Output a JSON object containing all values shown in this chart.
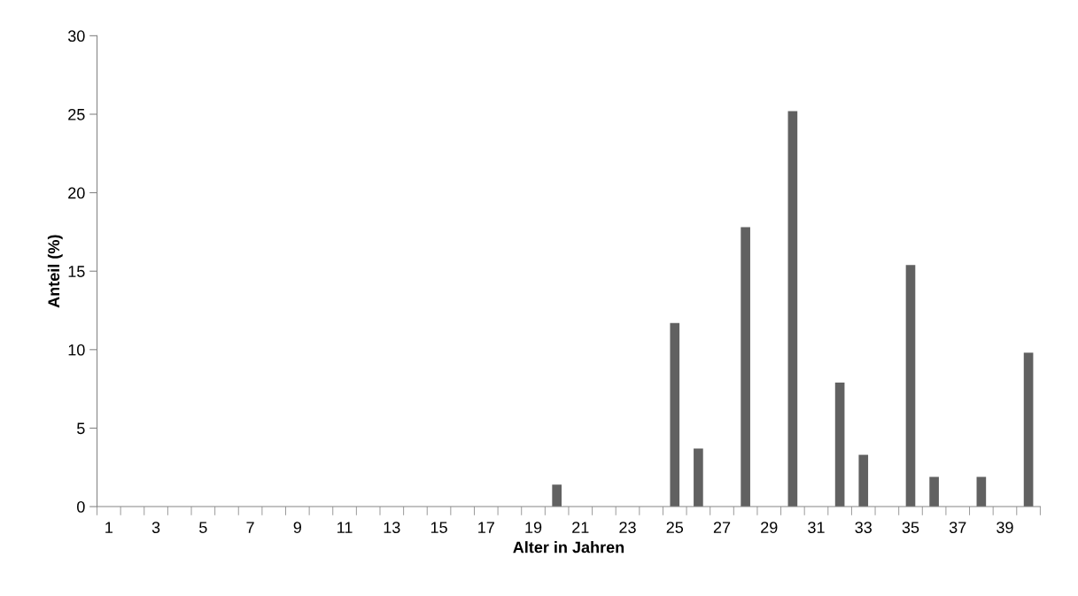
{
  "chart_data": {
    "type": "bar",
    "xlabel": "Alter in Jahren",
    "ylabel": "Anteil (%)",
    "categories": [
      "1",
      null,
      "3",
      null,
      "5",
      null,
      "7",
      null,
      "9",
      null,
      "11",
      null,
      "13",
      null,
      "15",
      null,
      "17",
      null,
      "19",
      null,
      "21",
      null,
      "23",
      null,
      "25",
      null,
      "27",
      null,
      "29",
      null,
      "31",
      null,
      "33",
      null,
      "35",
      null,
      "37",
      null,
      "39",
      null
    ],
    "values": [
      0,
      0,
      0,
      0,
      0,
      0,
      0,
      0,
      0,
      0,
      0,
      0,
      0,
      0,
      0,
      0,
      0,
      0,
      0,
      1.4,
      0,
      0,
      0,
      0,
      11.7,
      3.7,
      0,
      17.8,
      0,
      25.2,
      0,
      7.9,
      3.3,
      0,
      15.4,
      1.9,
      0,
      1.9,
      0,
      9.8
    ],
    "color": "#616161",
    "ylim": [
      0,
      30
    ],
    "yticks": [
      0,
      5,
      10,
      15,
      20,
      25,
      30
    ],
    "grid": false
  }
}
